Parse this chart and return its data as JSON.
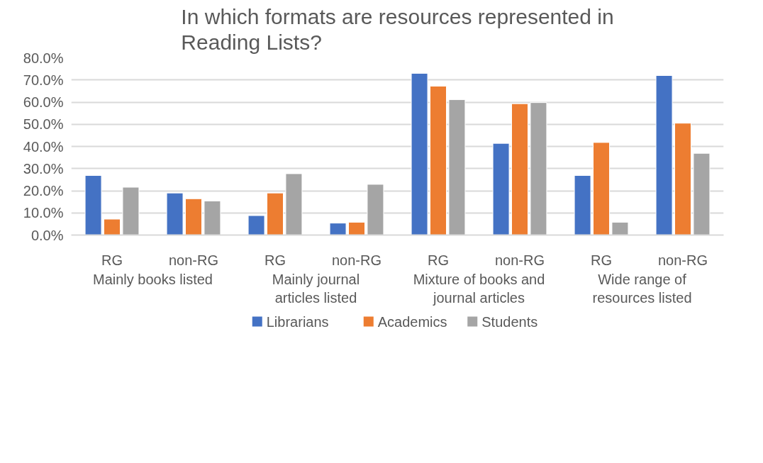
{
  "chart_data": {
    "type": "bar",
    "title": "In which formats are resources represented in Reading Lists?",
    "categories": [
      "RG",
      "non-RG",
      "RG",
      "non-RG",
      "RG",
      "non-RG",
      "RG",
      "non-RG"
    ],
    "annotations": [
      "Mainly books listed",
      "Mainly journal articles listed",
      "Mixture of books and journal articles",
      "Wide range of resources listed"
    ],
    "series": [
      {
        "name": "Librarians",
        "color": "#4472c4",
        "values": [
          26.9,
          19.0,
          8.8,
          5.4,
          73.0,
          41.4,
          26.9,
          72.0
        ]
      },
      {
        "name": "Academics",
        "color": "#ed7d31",
        "values": [
          7.2,
          16.4,
          19.0,
          5.8,
          67.2,
          59.3,
          41.8,
          50.5
        ]
      },
      {
        "name": "Students",
        "color": "#a5a5a5",
        "values": [
          21.6,
          15.4,
          27.7,
          22.9,
          61.1,
          59.8,
          5.8,
          36.9
        ]
      }
    ],
    "ylim": [
      0,
      80
    ],
    "yticks": [
      {
        "value": 0,
        "label": "0.0%"
      },
      {
        "value": 10,
        "label": "10.0%"
      },
      {
        "value": 20,
        "label": "20.0%"
      },
      {
        "value": 30,
        "label": "30.0%"
      },
      {
        "value": 40,
        "label": "40.0%"
      },
      {
        "value": 50,
        "label": "50.0%"
      },
      {
        "value": 60,
        "label": "60.0%"
      },
      {
        "value": 70,
        "label": "70.0%"
      },
      {
        "value": 80,
        "label": "80.0%"
      }
    ],
    "grid": "y",
    "legend": "bottom"
  }
}
